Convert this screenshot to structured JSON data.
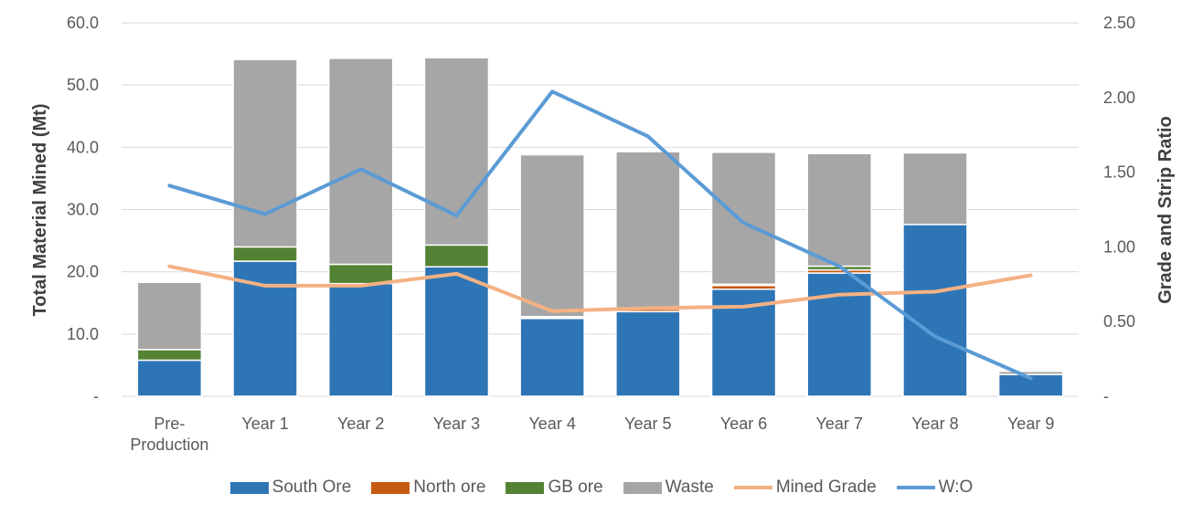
{
  "chart_data": {
    "type": "bar",
    "stacked": true,
    "categories": [
      "Pre-Production",
      "Year 1",
      "Year 2",
      "Year 3",
      "Year 4",
      "Year 5",
      "Year 6",
      "Year 7",
      "Year 8",
      "Year 9"
    ],
    "category_lines": [
      [
        "Pre-",
        "Production"
      ],
      [
        "Year 1"
      ],
      [
        "Year 2"
      ],
      [
        "Year 3"
      ],
      [
        "Year 4"
      ],
      [
        "Year 5"
      ],
      [
        "Year 6"
      ],
      [
        "Year 7"
      ],
      [
        "Year 8"
      ],
      [
        "Year 9"
      ]
    ],
    "series": [
      {
        "name": "South Ore",
        "axis": "left",
        "kind": "bar",
        "color": "#2E75B6",
        "values": [
          5.8,
          21.7,
          18.1,
          20.8,
          12.5,
          13.6,
          17.2,
          19.8,
          27.6,
          3.5
        ]
      },
      {
        "name": "North ore",
        "axis": "left",
        "kind": "bar",
        "color": "#C55A11",
        "values": [
          0,
          0,
          0,
          0,
          0.1,
          0.4,
          0.6,
          0.5,
          0,
          0
        ]
      },
      {
        "name": "GB ore",
        "axis": "left",
        "kind": "bar",
        "color": "#548235",
        "values": [
          1.7,
          2.3,
          3.1,
          3.5,
          0.2,
          0.2,
          0.2,
          0.6,
          0,
          0
        ]
      },
      {
        "name": "Waste",
        "axis": "left",
        "kind": "bar",
        "color": "#A6A6A6",
        "values": [
          10.8,
          30.1,
          33.1,
          30.1,
          26.0,
          25.1,
          21.2,
          18.1,
          11.5,
          0.5
        ]
      },
      {
        "name": "Mined Grade",
        "axis": "right",
        "kind": "line",
        "color": "#F4B183",
        "values": [
          0.87,
          0.74,
          0.74,
          0.82,
          0.57,
          0.59,
          0.6,
          0.68,
          0.7,
          0.81
        ]
      },
      {
        "name": "W:O",
        "axis": "right",
        "kind": "line",
        "color": "#5B9BD5",
        "values": [
          1.41,
          1.22,
          1.52,
          1.21,
          2.04,
          1.74,
          1.16,
          0.87,
          0.4,
          0.12
        ]
      }
    ],
    "y_left": {
      "label": "Total Material Mined (Mt)",
      "min": 0,
      "max": 60,
      "ticks": [
        0,
        10,
        20,
        30,
        40,
        50,
        60
      ],
      "tick_labels": [
        "-",
        "10.0",
        "20.0",
        "30.0",
        "40.0",
        "50.0",
        "60.0"
      ]
    },
    "y_right": {
      "label": "Grade and Strip Ratio",
      "min": 0,
      "max": 2.5,
      "ticks": [
        0,
        0.5,
        1.0,
        1.5,
        2.0,
        2.5
      ],
      "tick_labels": [
        "-",
        "0.50",
        "1.00",
        "1.50",
        "2.00",
        "2.50"
      ]
    },
    "grid": true,
    "legend_position": "bottom",
    "gridline_color": "#D9D9D9"
  }
}
